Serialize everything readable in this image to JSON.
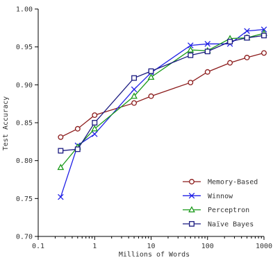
{
  "chart_data": {
    "type": "line",
    "xlabel": "Millions of Words",
    "ylabel": "Test Accuracy",
    "xscale": "log",
    "xlim": [
      0.1,
      1000
    ],
    "ylim": [
      0.7,
      1.0
    ],
    "x_ticks": [
      0.1,
      1,
      10,
      100,
      1000
    ],
    "x_tick_labels": [
      "0.1",
      "1",
      "10",
      "100",
      "1000"
    ],
    "y_ticks": [
      0.7,
      0.75,
      0.8,
      0.85,
      0.9,
      0.95,
      1.0
    ],
    "y_tick_labels": [
      "0.70",
      "0.75",
      "0.80",
      "0.85",
      "0.90",
      "0.95",
      "1.00"
    ],
    "legend_position": "bottom-right",
    "grid": false,
    "x": [
      0.25,
      0.5,
      1,
      5,
      10,
      50,
      100,
      250,
      500,
      1000
    ],
    "series": [
      {
        "name": "Memory-Based",
        "color": "#8b1a1a",
        "marker": "circle",
        "values": [
          0.831,
          0.842,
          0.86,
          0.876,
          0.885,
          0.903,
          0.917,
          0.929,
          0.936,
          0.942
        ]
      },
      {
        "name": "Winnow",
        "color": "#1f1fe6",
        "marker": "x",
        "values": [
          0.752,
          0.82,
          0.835,
          0.894,
          0.916,
          0.952,
          0.954,
          0.954,
          0.971,
          0.973
        ]
      },
      {
        "name": "Perceptron",
        "color": "#1a9a1a",
        "marker": "triangle",
        "values": [
          0.791,
          0.818,
          0.842,
          0.885,
          0.91,
          0.946,
          0.945,
          0.961,
          0.962,
          0.968
        ]
      },
      {
        "name": "Naïve Bayes",
        "color": "#1a1a80",
        "marker": "square",
        "values": [
          0.813,
          0.815,
          0.85,
          0.909,
          0.918,
          0.939,
          0.944,
          0.957,
          0.962,
          0.965
        ]
      }
    ]
  }
}
